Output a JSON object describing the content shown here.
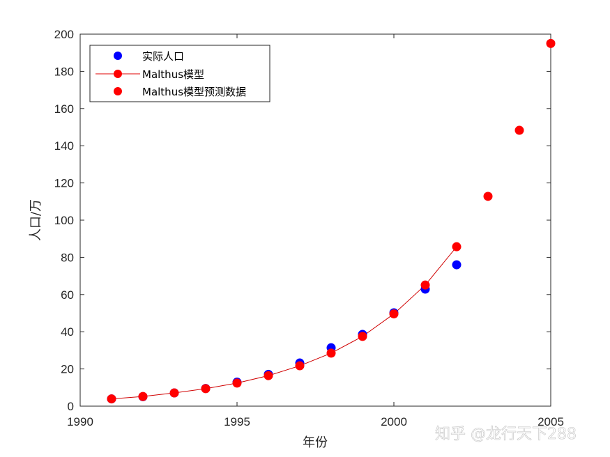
{
  "chart_data": {
    "type": "scatter",
    "xlabel": "年份",
    "ylabel": "人口/万",
    "xlim": [
      1990,
      2005
    ],
    "ylim": [
      0,
      200
    ],
    "xticks": [
      1990,
      1995,
      2000,
      2005
    ],
    "yticks": [
      0,
      20,
      40,
      60,
      80,
      100,
      120,
      140,
      160,
      180,
      200
    ],
    "grid": false,
    "legend_position": "top-left",
    "series": [
      {
        "name": "实际人口",
        "style": "markers",
        "color": "#0000ff",
        "x": [
          1991,
          1992,
          1993,
          1994,
          1995,
          1996,
          1997,
          1998,
          1999,
          2000,
          2001,
          2002
        ],
        "y": [
          3.9,
          5.1,
          7.1,
          9.5,
          12.9,
          17.1,
          23.2,
          31.4,
          38.6,
          50.2,
          62.9,
          76.0
        ]
      },
      {
        "name": "Malthus模型",
        "style": "line+markers",
        "color": "#ff0000",
        "x": [
          1991,
          1992,
          1993,
          1994,
          1995,
          1996,
          1997,
          1998,
          1999,
          2000,
          2001,
          2002
        ],
        "y": [
          3.9,
          5.2,
          7.1,
          9.4,
          12.4,
          16.4,
          21.7,
          28.5,
          37.5,
          49.6,
          65.1,
          85.7
        ]
      },
      {
        "name": "Malthus模型预测数据",
        "style": "markers",
        "color": "#ff0000",
        "x": [
          2003,
          2004,
          2005
        ],
        "y": [
          112.8,
          148.3,
          195.0
        ]
      }
    ]
  },
  "watermark": "知乎 @龙行天下288"
}
